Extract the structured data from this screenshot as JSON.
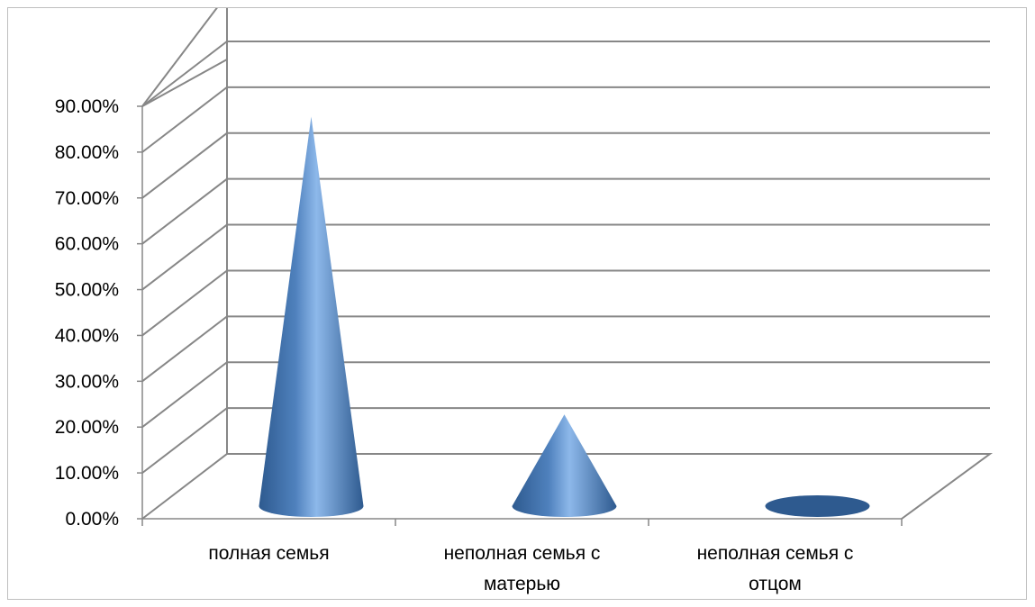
{
  "chart_data": {
    "type": "bar",
    "style": "3d-cone",
    "categories": [
      [
        "полная семья"
      ],
      [
        "неполная семья с",
        "матерью"
      ],
      [
        "неполная семья с",
        "отцом"
      ]
    ],
    "values": [
      0.85,
      0.2,
      0.02
    ],
    "ylim": [
      0,
      0.9
    ],
    "ytick_step": 0.1,
    "ytick_format": "percent-2dp",
    "grid": true,
    "legend": "none",
    "title": "",
    "xlabel": "",
    "ylabel": "",
    "colors": {
      "cone_dark": "#2e5a8f",
      "cone_mid": "#4f81bd",
      "cone_light": "#8db8ea",
      "grid": "#878787"
    }
  }
}
